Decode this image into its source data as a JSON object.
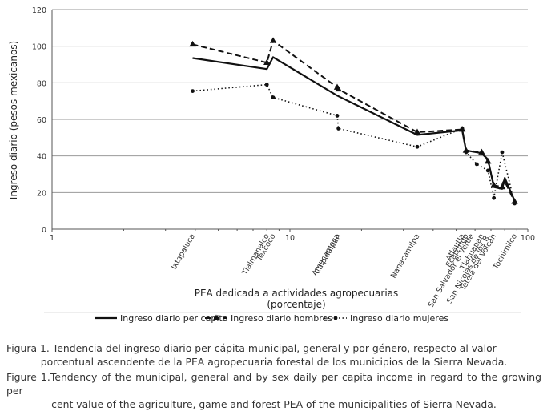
{
  "chart_data": {
    "type": "line",
    "x_scale": "log",
    "xlim": [
      1,
      100
    ],
    "ylim": [
      0,
      120
    ],
    "y_ticks": [
      0,
      20,
      40,
      60,
      80,
      100,
      120
    ],
    "x_ticks": [
      "1",
      "10",
      "100"
    ],
    "ylabel": "Ingreso diario (pesos mexicanos)",
    "xlabel_line1": "PEA dedicada a actividades agropecuarias",
    "xlabel_line2": "(porcentaje)",
    "grid": "horizontal",
    "legend_position": "bottom",
    "municipalities": [
      {
        "name": "Ixtapaluca",
        "x": 3.9
      },
      {
        "name": "Tlalmanalco",
        "x": 8.0
      },
      {
        "name": "Texcoco",
        "x": 8.5
      },
      {
        "name": "Amecameca",
        "x": 15.8
      },
      {
        "name": "Calpulalpan",
        "x": 16.0
      },
      {
        "name": "Nanacamilpa",
        "x": 34.3
      },
      {
        "name": "Atlautla",
        "x": 53.0
      },
      {
        "name": "Ecatzingo",
        "x": 55.0
      },
      {
        "name": "San Salvador el Verde",
        "x": 58.0
      },
      {
        "name": "Tlahuapan",
        "x": 64.0
      },
      {
        "name": "San Nicolás de los R.",
        "x": 68.0
      },
      {
        "name": "Tetela del Volcán",
        "x": 72.0
      },
      {
        "name": "Tochimilco",
        "x": 88.0
      }
    ],
    "series": [
      {
        "name": "Ingreso diario per capita",
        "style": "solid",
        "points": [
          [
            3.9,
            93.5
          ],
          [
            8.0,
            87.5
          ],
          [
            8.5,
            94
          ],
          [
            15.8,
            73
          ],
          [
            34.3,
            51.5
          ],
          [
            53.0,
            54
          ],
          [
            55.0,
            43
          ],
          [
            64.0,
            41.5
          ],
          [
            68.0,
            38
          ],
          [
            72.0,
            23
          ],
          [
            78.0,
            22
          ],
          [
            80.0,
            28
          ],
          [
            88.0,
            15.5
          ]
        ]
      },
      {
        "name": "Ingreso diario hombres",
        "style": "dashed",
        "points": [
          [
            3.9,
            101
          ],
          [
            8.0,
            91
          ],
          [
            8.5,
            103
          ],
          [
            15.8,
            77.5
          ],
          [
            16.0,
            76.5
          ],
          [
            34.3,
            53
          ],
          [
            53.0,
            54.5
          ],
          [
            55.0,
            43
          ],
          [
            64.0,
            42
          ],
          [
            68.0,
            37
          ],
          [
            72.0,
            24
          ],
          [
            78.0,
            23
          ],
          [
            80.0,
            26
          ],
          [
            88.0,
            15
          ]
        ]
      },
      {
        "name": "Ingreso diario mujeres",
        "style": "dotted",
        "points": [
          [
            3.9,
            75.5
          ],
          [
            8.0,
            79
          ],
          [
            8.5,
            72
          ],
          [
            15.8,
            62
          ],
          [
            16.0,
            55
          ],
          [
            34.3,
            45
          ],
          [
            53.0,
            55
          ],
          [
            55.0,
            42
          ],
          [
            61.0,
            35.5
          ],
          [
            68.0,
            32
          ],
          [
            72.0,
            17
          ],
          [
            78.0,
            42
          ],
          [
            88.0,
            14
          ]
        ]
      }
    ]
  },
  "captions": {
    "es_line1": "Figura 1. Tendencia del ingreso diario per cápita municipal, general y por género, respecto al valor",
    "es_line2": "porcentual ascendente de la PEA agropecuaria forestal  de los municipios de la Sierra Nevada.",
    "en_line1": "Figure 1.Tendency of the municipal, general and by sex daily per capita income in regard to the growing per",
    "en_line2": "cent value of the agriculture, game and forest PEA of the municipalities of Sierra Nevada."
  }
}
